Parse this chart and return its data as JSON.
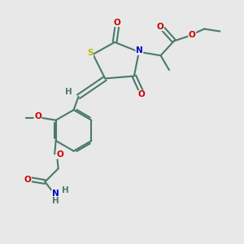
{
  "bg_color": "#e8e8e8",
  "bond_color": "#4a7a6a",
  "bond_width": 1.5,
  "atom_colors": {
    "S": "#b8b800",
    "N": "#0000cc",
    "O": "#cc0000",
    "H": "#4a7a6a",
    "C": "#4a7a6a"
  },
  "fig_width": 3.0,
  "fig_height": 3.0,
  "dpi": 100,
  "font_size": 7.5
}
